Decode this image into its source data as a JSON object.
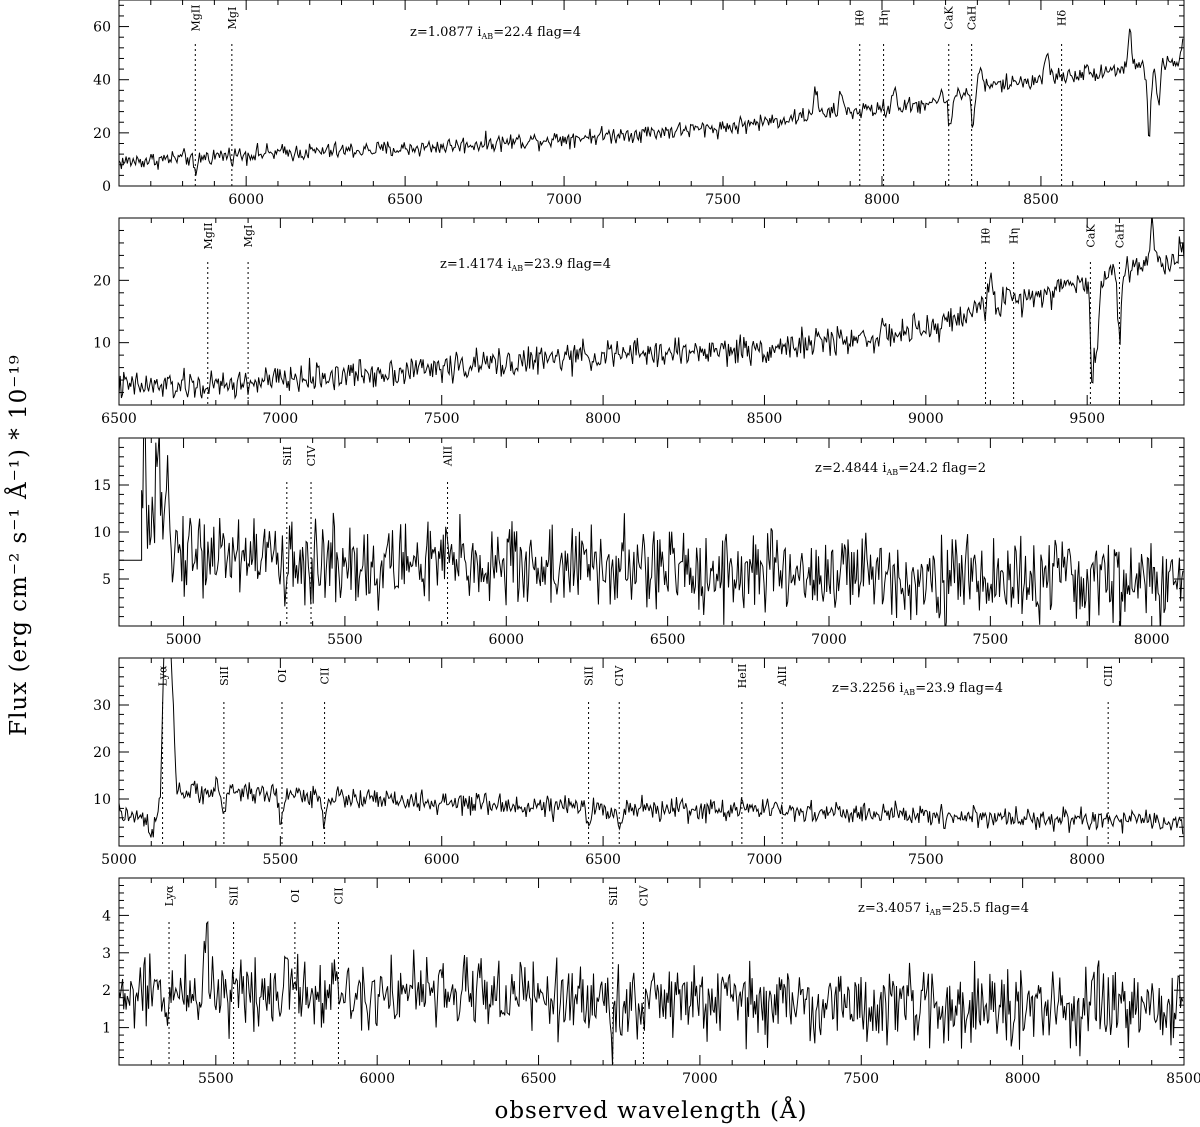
{
  "figure": {
    "xlabel": "observed wavelength (Å)",
    "ylabel": "Flux (erg cm⁻² s⁻¹ Å⁻¹) * 10⁻¹⁹"
  },
  "chart_data": [
    {
      "type": "line",
      "info": {
        "z": "1.0877",
        "iab": "22.4",
        "flag": "4"
      },
      "xlim": [
        5600,
        8950
      ],
      "ylim": [
        0,
        70
      ],
      "xticks": [
        6000,
        6500,
        7000,
        7500,
        8000,
        8500
      ],
      "yticks": [
        0,
        20,
        40,
        60
      ],
      "continuum": [
        [
          5600,
          9
        ],
        [
          6000,
          12
        ],
        [
          6500,
          14
        ],
        [
          7000,
          18
        ],
        [
          7500,
          22
        ],
        [
          7800,
          27
        ],
        [
          8100,
          30
        ],
        [
          8300,
          37
        ],
        [
          8600,
          42
        ],
        [
          8950,
          47
        ]
      ],
      "noise": 2.5,
      "spikes": [
        [
          5840,
          -7
        ],
        [
          7790,
          10
        ],
        [
          7870,
          8
        ],
        [
          8040,
          8
        ],
        [
          8215,
          -12
        ],
        [
          8285,
          -14
        ],
        [
          8310,
          8
        ],
        [
          8520,
          10
        ],
        [
          8780,
          14
        ],
        [
          8840,
          -26
        ],
        [
          8870,
          -15
        ],
        [
          8950,
          10
        ]
      ],
      "lines": [
        {
          "name": "MgII",
          "x": 5840,
          "pos": "top"
        },
        {
          "name": "MgI",
          "x": 5955,
          "pos": "top"
        },
        {
          "name": "Hθ",
          "x": 7930,
          "pos": "top"
        },
        {
          "name": "Hη",
          "x": 8005,
          "pos": "top"
        },
        {
          "name": "CaK",
          "x": 8210,
          "pos": "top"
        },
        {
          "name": "CaH",
          "x": 8282,
          "pos": "top"
        },
        {
          "name": "Hδ",
          "x": 8565,
          "pos": "top"
        }
      ]
    },
    {
      "type": "line",
      "info": {
        "z": "1.4174",
        "iab": "23.9",
        "flag": "4"
      },
      "xlim": [
        6500,
        9800
      ],
      "ylim": [
        0,
        30
      ],
      "xticks": [
        6500,
        7000,
        7500,
        8000,
        8500,
        9000,
        9500
      ],
      "yticks": [
        10,
        20
      ],
      "continuum": [
        [
          6500,
          3
        ],
        [
          6800,
          3
        ],
        [
          7000,
          4
        ],
        [
          7500,
          6
        ],
        [
          8000,
          8
        ],
        [
          8500,
          9
        ],
        [
          9000,
          12
        ],
        [
          9200,
          16
        ],
        [
          9500,
          20
        ],
        [
          9700,
          23
        ],
        [
          9800,
          23
        ]
      ],
      "noise": 1.8,
      "spikes": [
        [
          9200,
          6
        ],
        [
          9515,
          -16
        ],
        [
          9530,
          -12
        ],
        [
          9600,
          -10
        ],
        [
          9700,
          6
        ],
        [
          9790,
          4
        ]
      ],
      "lines": [
        {
          "name": "MgII",
          "x": 6775,
          "pos": "top"
        },
        {
          "name": "MgI",
          "x": 6900,
          "pos": "top"
        },
        {
          "name": "Hθ",
          "x": 9185,
          "pos": "top"
        },
        {
          "name": "Hη",
          "x": 9272,
          "pos": "top"
        },
        {
          "name": "CaK",
          "x": 9510,
          "pos": "top"
        },
        {
          "name": "CaH",
          "x": 9600,
          "pos": "top"
        }
      ]
    },
    {
      "type": "line",
      "info": {
        "z": "2.4844",
        "iab": "24.2",
        "flag": "2"
      },
      "xlim": [
        4800,
        8100
      ],
      "ylim": [
        0,
        20
      ],
      "xticks": [
        5000,
        5500,
        6000,
        6500,
        7000,
        7500,
        8000
      ],
      "yticks": [
        5,
        10,
        15
      ],
      "continuum": [
        [
          4870,
          9
        ],
        [
          5000,
          8
        ],
        [
          5500,
          7
        ],
        [
          6000,
          6.5
        ],
        [
          6500,
          6
        ],
        [
          7000,
          5.5
        ],
        [
          7500,
          5
        ],
        [
          8100,
          4.5
        ]
      ],
      "noise": 3.5,
      "flat_start": {
        "x": [
          4800,
          4870
        ],
        "y": 7
      },
      "spikes": [
        [
          4880,
          11
        ],
        [
          4920,
          9
        ],
        [
          4950,
          12
        ],
        [
          5315,
          -5
        ],
        [
          5395,
          -6
        ],
        [
          5600,
          -5
        ]
      ],
      "lines": [
        {
          "name": "SiII",
          "x": 5320,
          "pos": "top"
        },
        {
          "name": "CIV",
          "x": 5395,
          "pos": "top"
        },
        {
          "name": "AlII",
          "x": 5818,
          "pos": "top"
        }
      ]
    },
    {
      "type": "line",
      "info": {
        "z": "3.2256",
        "iab": "23.9",
        "flag": "4"
      },
      "xlim": [
        5000,
        8300
      ],
      "ylim": [
        0,
        40
      ],
      "xticks": [
        5000,
        5500,
        6000,
        6500,
        7000,
        7500,
        8000
      ],
      "yticks": [
        10,
        20,
        30
      ],
      "continuum": [
        [
          5000,
          7
        ],
        [
          5100,
          5
        ],
        [
          5160,
          11
        ],
        [
          5300,
          12
        ],
        [
          5500,
          11
        ],
        [
          6000,
          9
        ],
        [
          6500,
          8
        ],
        [
          7000,
          7.5
        ],
        [
          7500,
          6.5
        ],
        [
          8300,
          5
        ]
      ],
      "noise": 1.8,
      "spikes": [
        [
          5140,
          28
        ],
        [
          5150,
          30
        ],
        [
          5160,
          22
        ],
        [
          5170,
          10
        ],
        [
          5100,
          -4
        ],
        [
          5325,
          -5
        ],
        [
          5500,
          -6
        ],
        [
          5637,
          -5
        ],
        [
          6455,
          -4
        ],
        [
          6550,
          -4
        ],
        [
          6930,
          3
        ]
      ],
      "lines": [
        {
          "name": "Lyα",
          "x": 5135,
          "pos": "top"
        },
        {
          "name": "SiII",
          "x": 5325,
          "pos": "top"
        },
        {
          "name": "OI",
          "x": 5505,
          "pos": "top"
        },
        {
          "name": "CII",
          "x": 5637,
          "pos": "top"
        },
        {
          "name": "SiII",
          "x": 6455,
          "pos": "top"
        },
        {
          "name": "CIV",
          "x": 6550,
          "pos": "top"
        },
        {
          "name": "HeII",
          "x": 6930,
          "pos": "top"
        },
        {
          "name": "AlII",
          "x": 7055,
          "pos": "top"
        },
        {
          "name": "CIII",
          "x": 8065,
          "pos": "top"
        }
      ]
    },
    {
      "type": "line",
      "info": {
        "z": "3.4057",
        "iab": "25.5",
        "flag": "4"
      },
      "xlim": [
        5200,
        8500
      ],
      "ylim": [
        0,
        5
      ],
      "xticks": [
        5500,
        6000,
        6500,
        7000,
        7500,
        8000,
        8500
      ],
      "yticks": [
        1,
        2,
        3,
        4
      ],
      "continuum": [
        [
          5200,
          1.8
        ],
        [
          5500,
          2.0
        ],
        [
          6000,
          2.0
        ],
        [
          6500,
          1.8
        ],
        [
          7000,
          1.7
        ],
        [
          7500,
          1.6
        ],
        [
          8000,
          1.5
        ],
        [
          8500,
          1.5
        ]
      ],
      "noise": 0.75,
      "spikes": [
        [
          5470,
          1.8
        ],
        [
          5720,
          1.2
        ],
        [
          6320,
          1.0
        ],
        [
          6730,
          -1.0
        ]
      ],
      "lines": [
        {
          "name": "Lyα",
          "x": 5355,
          "pos": "top"
        },
        {
          "name": "SiII",
          "x": 5555,
          "pos": "top"
        },
        {
          "name": "OI",
          "x": 5745,
          "pos": "top"
        },
        {
          "name": "CII",
          "x": 5880,
          "pos": "top"
        },
        {
          "name": "SiII",
          "x": 6730,
          "pos": "top"
        },
        {
          "name": "CIV",
          "x": 6825,
          "pos": "top"
        }
      ]
    }
  ]
}
